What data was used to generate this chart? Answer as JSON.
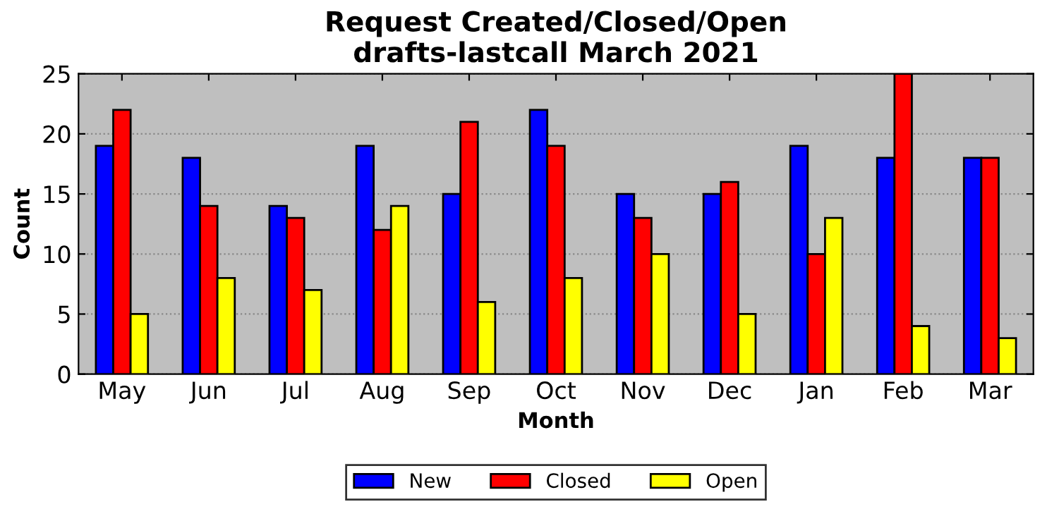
{
  "chart_data": {
    "type": "bar",
    "title": "Request Created/Closed/Open\ndrafts-lastcall March 2021",
    "xlabel": "Month",
    "ylabel": "Count",
    "categories": [
      "May",
      "Jun",
      "Jul",
      "Aug",
      "Sep",
      "Oct",
      "Nov",
      "Dec",
      "Jan",
      "Feb",
      "Mar"
    ],
    "series": [
      {
        "name": "New",
        "color": "#0000ff",
        "values": [
          19,
          18,
          14,
          19,
          15,
          22,
          15,
          15,
          19,
          18,
          18
        ]
      },
      {
        "name": "Closed",
        "color": "#ff0000",
        "values": [
          22,
          14,
          13,
          12,
          21,
          19,
          13,
          16,
          10,
          25,
          18
        ]
      },
      {
        "name": "Open",
        "color": "#ffff00",
        "values": [
          5,
          8,
          7,
          14,
          6,
          8,
          10,
          5,
          13,
          4,
          3
        ]
      }
    ],
    "ylim": [
      0,
      25
    ],
    "yticks": [
      0,
      5,
      10,
      15,
      20,
      25
    ],
    "grid": "y",
    "legend": "bottom"
  }
}
